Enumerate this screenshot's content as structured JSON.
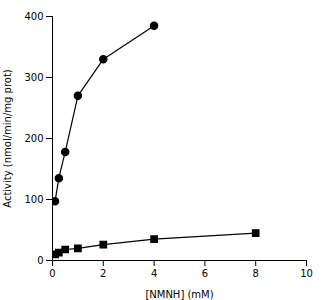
{
  "chart_data": {
    "type": "line",
    "xlabel": "[NMNH] (mM)",
    "ylabel": "Activity (nmol/min/mg prot)",
    "x": [
      0.1,
      0.25,
      0.5,
      1.0,
      2.0,
      4.0,
      8.0
    ],
    "series": [
      {
        "color": "#000000",
        "marker": "circle",
        "line_style": "solid",
        "values": [
          97,
          135,
          178,
          270,
          330,
          385,
          null
        ]
      },
      {
        "color": "#000000",
        "marker": "square",
        "line_style": "solid",
        "values": [
          10,
          13,
          18,
          20,
          26,
          35,
          45
        ]
      }
    ],
    "xlim": [
      0,
      10
    ],
    "ylim": [
      0,
      400
    ],
    "xticks": [
      0,
      2,
      4,
      6,
      8,
      10
    ],
    "yticks": [
      0,
      100,
      200,
      300,
      400
    ],
    "grid": false
  }
}
